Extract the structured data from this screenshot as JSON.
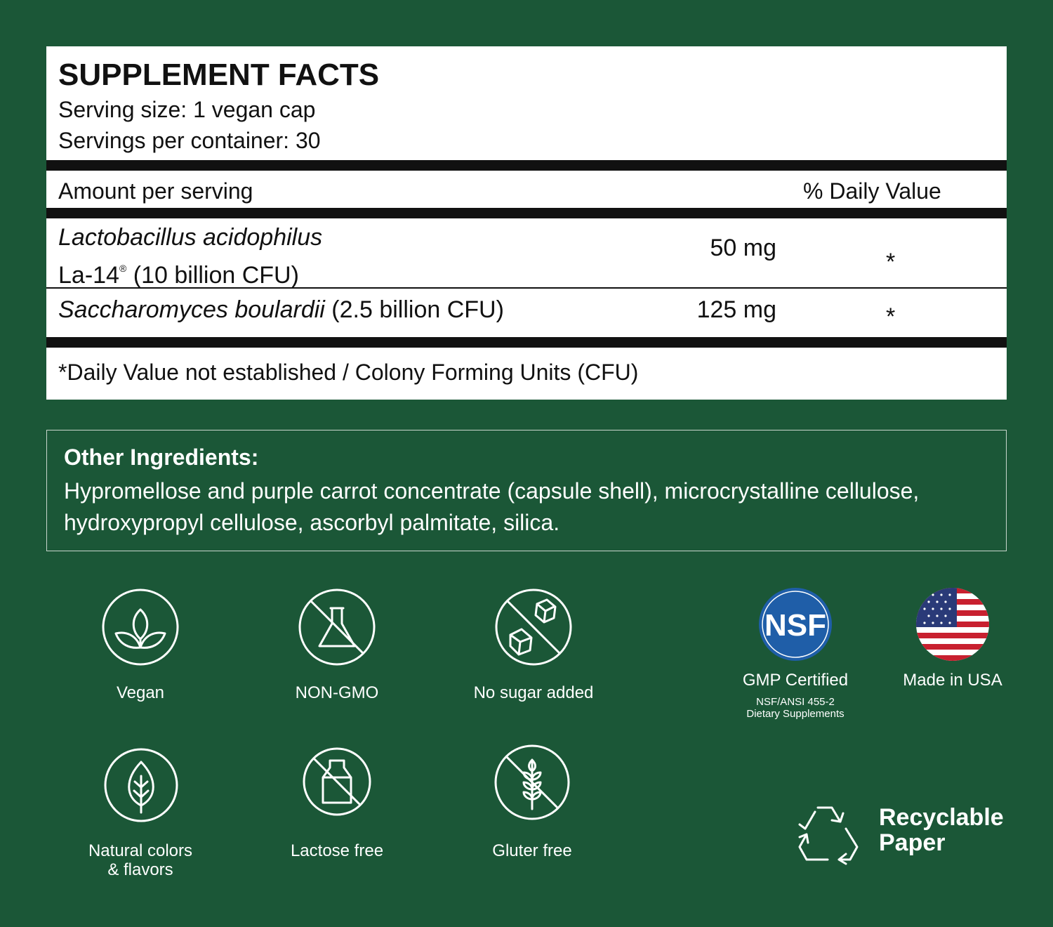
{
  "facts": {
    "title": "SUPPLEMENT FACTS",
    "serving_size": "Serving size: 1 vegan cap",
    "servings_per_container": "Servings per container: 30",
    "header": {
      "amount": "Amount per serving",
      "daily_value": "% Daily Value"
    },
    "rows": [
      {
        "name_italic": "Lactobacillus acidophilus",
        "name_rest": "La-14",
        "mark": "®",
        "name_tail": "(10 billion CFU)",
        "amount": "50 mg",
        "dv": "*"
      },
      {
        "name_italic": "Saccharomyces boulardii",
        "name_tail": "(2.5 billion CFU)",
        "amount": "125 mg",
        "dv": "*"
      }
    ],
    "footnote": "*Daily Value not established / Colony Forming Units (CFU)"
  },
  "other_ingredients": {
    "label": "Other Ingredients:",
    "text": "Hypromellose and purple carrot concentrate (capsule shell), microcrystalline cellulose, hydroxypropyl cellulose, ascorbyl palmitate, silica."
  },
  "badges": [
    "Vegan",
    "NON-GMO",
    "No sugar added",
    "Natural colors & flavors",
    "Lactose free",
    "Gluter free"
  ],
  "nsf": {
    "logo": "NSF",
    "title": "GMP Certified",
    "lines": [
      "NSF/ANSI 455-2",
      "Dietary Supplements"
    ]
  },
  "usa": "Made in USA",
  "recyclable": [
    "Recyclable",
    "Paper"
  ]
}
